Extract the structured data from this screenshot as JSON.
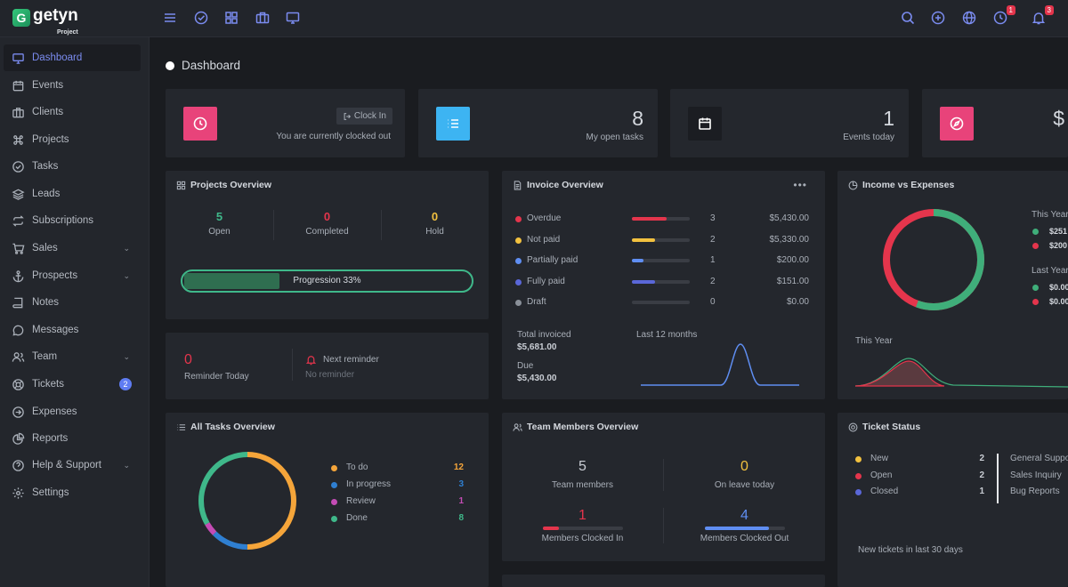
{
  "brand": {
    "name": "getyn",
    "sub": "Project",
    "mark": "G"
  },
  "topbar": {
    "clock_badge": "1",
    "bell_badge": "3"
  },
  "sidebar": {
    "items": [
      {
        "label": "Dashboard"
      },
      {
        "label": "Events"
      },
      {
        "label": "Clients"
      },
      {
        "label": "Projects"
      },
      {
        "label": "Tasks"
      },
      {
        "label": "Leads"
      },
      {
        "label": "Subscriptions"
      },
      {
        "label": "Sales"
      },
      {
        "label": "Prospects"
      },
      {
        "label": "Notes"
      },
      {
        "label": "Messages"
      },
      {
        "label": "Team"
      },
      {
        "label": "Tickets"
      },
      {
        "label": "Expenses"
      },
      {
        "label": "Reports"
      },
      {
        "label": "Help & Support"
      },
      {
        "label": "Settings"
      }
    ],
    "tickets_badge": "2"
  },
  "page": {
    "title": "Dashboard"
  },
  "stats": {
    "clock_button": "Clock In",
    "clock_status": "You are currently clocked out",
    "open_tasks_num": "8",
    "open_tasks_label": "My open tasks",
    "events_num": "1",
    "events_label": "Events today",
    "fourth_num": "$"
  },
  "projects": {
    "title": "Projects Overview",
    "open_num": "5",
    "open_label": "Open",
    "completed_num": "0",
    "completed_label": "Completed",
    "hold_num": "0",
    "hold_label": "Hold",
    "progress_label": "Progression 33%",
    "progress_value": 0.33
  },
  "reminder": {
    "count": "0",
    "count_label": "Reminder Today",
    "next_label": "Next reminder",
    "next_value": "No reminder"
  },
  "invoice": {
    "title": "Invoice Overview",
    "rows": [
      {
        "label": "Overdue",
        "color": "#e4354c",
        "count": "3",
        "amount": "$5,430.00",
        "fill": 0.6
      },
      {
        "label": "Not paid",
        "color": "#f2c13f",
        "count": "2",
        "amount": "$5,330.00",
        "fill": 0.4
      },
      {
        "label": "Partially paid",
        "color": "#5f8ef2",
        "count": "1",
        "amount": "$200.00",
        "fill": 0.2
      },
      {
        "label": "Fully paid",
        "color": "#5a67d8",
        "count": "2",
        "amount": "$151.00",
        "fill": 0.4
      },
      {
        "label": "Draft",
        "color": "#8a9099",
        "count": "0",
        "amount": "$0.00",
        "fill": 0
      }
    ],
    "total_label": "Total invoiced",
    "total_value": "$5,681.00",
    "due_label": "Due",
    "due_value": "$5,430.00",
    "chart_label": "Last 12 months"
  },
  "income": {
    "title": "Income vs Expenses",
    "this_year": "This Year",
    "ty_income": "$251",
    "ty_expense": "$200",
    "last_year": "Last Year",
    "ly_income": "$0.00",
    "ly_expense": "$0.00",
    "chart_label": "This Year",
    "income_color": "#3fae7a",
    "expense_color": "#e4354c"
  },
  "tasks": {
    "title": "All Tasks Overview",
    "rows": [
      {
        "label": "To do",
        "count": "12",
        "color": "#f5a53a"
      },
      {
        "label": "In progress",
        "count": "3",
        "color": "#2f7fd1"
      },
      {
        "label": "Review",
        "count": "1",
        "color": "#c44cb5"
      },
      {
        "label": "Done",
        "count": "8",
        "color": "#3fb88a"
      }
    ]
  },
  "team": {
    "title": "Team Members Overview",
    "members_num": "5",
    "members_label": "Team members",
    "leave_num": "0",
    "leave_label": "On leave today",
    "in_num": "1",
    "in_label": "Members Clocked In",
    "out_num": "4",
    "out_label": "Members Clocked Out"
  },
  "tickets": {
    "title": "Ticket Status",
    "rows": [
      {
        "label": "New",
        "count": "2",
        "color": "#f2c13f"
      },
      {
        "label": "Open",
        "count": "2",
        "color": "#e4354c"
      },
      {
        "label": "Closed",
        "count": "1",
        "color": "#5a67d8"
      }
    ],
    "types": [
      "General Suppo",
      "Sales Inquiry",
      "Bug Reports"
    ],
    "footer": "New tickets in last 30 days"
  }
}
